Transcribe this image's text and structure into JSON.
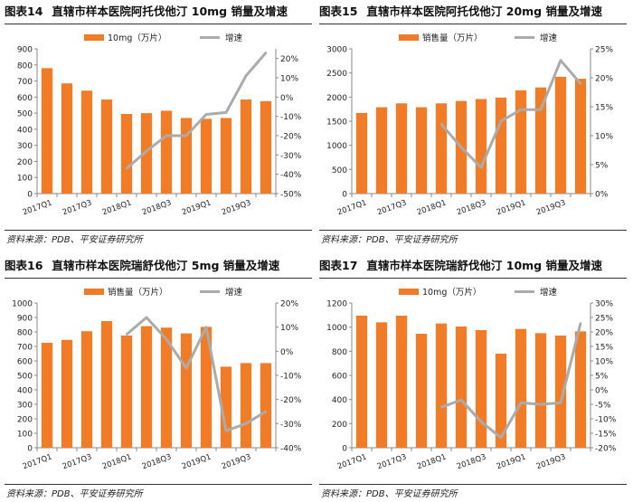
{
  "source_note": "资料来源：PDB、平安证券研究所",
  "chart_data": [
    {
      "type": "bar",
      "figure_label": "图表14",
      "title": "直辖市样本医院阿托伐他汀 10mg 销量及增速",
      "categories": [
        "2017Q1",
        "2017Q2",
        "2017Q3",
        "2017Q4",
        "2018Q1",
        "2018Q2",
        "2018Q3",
        "2018Q4",
        "2019Q1",
        "2019Q2",
        "2019Q3",
        "2019Q4"
      ],
      "x_tick_labels": [
        "2017Q1",
        "",
        "2017Q3",
        "",
        "2018Q1",
        "",
        "2018Q3",
        "",
        "2019Q1",
        "",
        "2019Q3",
        ""
      ],
      "series": [
        {
          "name": "10mg（万片）",
          "kind": "bar",
          "axis": "left",
          "values": [
            780,
            685,
            640,
            585,
            495,
            500,
            515,
            470,
            465,
            470,
            585,
            575
          ]
        },
        {
          "name": "增速",
          "kind": "line",
          "axis": "right",
          "values": [
            null,
            null,
            null,
            null,
            -37,
            -28,
            -20,
            -20,
            -9,
            -8,
            11,
            23
          ]
        }
      ],
      "ylim_left": [
        0,
        900
      ],
      "yticks_left": [
        0,
        100,
        200,
        300,
        400,
        500,
        600,
        700,
        800,
        900
      ],
      "ylim_right": [
        -50,
        25
      ],
      "yticks_right": [
        -50,
        -40,
        -30,
        -20,
        -10,
        0,
        10,
        20
      ],
      "right_unit": "%",
      "legend_position": "top",
      "colors": {
        "bar": "#F07C28",
        "line": "#ABABAB"
      }
    },
    {
      "type": "bar",
      "figure_label": "图表15",
      "title": "直辖市样本医院阿托伐他汀 20mg 销量及增速",
      "categories": [
        "2017Q1",
        "2017Q2",
        "2017Q3",
        "2017Q4",
        "2018Q1",
        "2018Q2",
        "2018Q3",
        "2018Q4",
        "2019Q1",
        "2019Q2",
        "2019Q3",
        "2019Q4"
      ],
      "x_tick_labels": [
        "2017Q1",
        "",
        "2017Q3",
        "",
        "2018Q1",
        "",
        "2018Q3",
        "",
        "2019Q1",
        "",
        "2019Q3",
        ""
      ],
      "series": [
        {
          "name": "销售量（万片）",
          "kind": "bar",
          "axis": "left",
          "values": [
            1670,
            1790,
            1870,
            1790,
            1870,
            1920,
            1960,
            1990,
            2140,
            2200,
            2420,
            2380
          ]
        },
        {
          "name": "增速",
          "kind": "line",
          "axis": "right",
          "values": [
            null,
            null,
            null,
            null,
            12,
            8,
            4.5,
            12.5,
            14.5,
            14.5,
            23,
            19
          ]
        }
      ],
      "ylim_left": [
        0,
        3000
      ],
      "yticks_left": [
        0,
        500,
        1000,
        1500,
        2000,
        2500,
        3000
      ],
      "ylim_right": [
        0,
        25
      ],
      "yticks_right": [
        0,
        5,
        10,
        15,
        20,
        25
      ],
      "right_unit": "%",
      "legend_position": "top",
      "colors": {
        "bar": "#F07C28",
        "line": "#ABABAB"
      }
    },
    {
      "type": "bar",
      "figure_label": "图表16",
      "title": "直辖市样本医院瑞舒伐他汀 5mg 销量及增速",
      "categories": [
        "2017Q1",
        "2017Q2",
        "2017Q3",
        "2017Q4",
        "2018Q1",
        "2018Q2",
        "2018Q3",
        "2018Q4",
        "2019Q1",
        "2019Q2",
        "2019Q3",
        "2019Q4"
      ],
      "x_tick_labels": [
        "2017Q1",
        "",
        "2017Q3",
        "",
        "2018Q1",
        "",
        "2018Q3",
        "",
        "2019Q1",
        "",
        "2019Q3",
        ""
      ],
      "series": [
        {
          "name": "销售量（万片）",
          "kind": "bar",
          "axis": "left",
          "values": [
            725,
            745,
            805,
            875,
            775,
            840,
            830,
            790,
            835,
            560,
            585,
            585
          ]
        },
        {
          "name": "增速",
          "kind": "line",
          "axis": "right",
          "values": [
            null,
            null,
            null,
            null,
            7,
            14,
            5,
            -7,
            10,
            -33,
            -30,
            -25
          ]
        }
      ],
      "ylim_left": [
        0,
        1000
      ],
      "yticks_left": [
        0,
        100,
        200,
        300,
        400,
        500,
        600,
        700,
        800,
        900,
        1000
      ],
      "ylim_right": [
        -40,
        20
      ],
      "yticks_right": [
        -40,
        -30,
        -20,
        -10,
        0,
        10,
        20
      ],
      "right_unit": "%",
      "legend_position": "top",
      "colors": {
        "bar": "#F07C28",
        "line": "#ABABAB"
      }
    },
    {
      "type": "bar",
      "figure_label": "图表17",
      "title": "直辖市样本医院瑞舒伐他汀 10mg 销量及增速",
      "categories": [
        "2017Q1",
        "2017Q2",
        "2017Q3",
        "2017Q4",
        "2018Q1",
        "2018Q2",
        "2018Q3",
        "2018Q4",
        "2019Q1",
        "2019Q2",
        "2019Q3",
        "2019Q4"
      ],
      "x_tick_labels": [
        "2017Q1",
        "",
        "2017Q3",
        "",
        "2018Q1",
        "",
        "2018Q3",
        "",
        "2019Q1",
        "",
        "2019Q3",
        ""
      ],
      "series": [
        {
          "name": "10mg（万片）",
          "kind": "bar",
          "axis": "left",
          "values": [
            1095,
            1040,
            1095,
            945,
            1030,
            1005,
            975,
            780,
            985,
            950,
            930,
            965
          ]
        },
        {
          "name": "增速",
          "kind": "line",
          "axis": "right",
          "values": [
            null,
            null,
            null,
            null,
            -6,
            -3.5,
            -11,
            -16.5,
            -4.5,
            -5,
            -4.5,
            23
          ]
        }
      ],
      "ylim_left": [
        0,
        1200
      ],
      "yticks_left": [
        0,
        200,
        400,
        600,
        800,
        1000,
        1200
      ],
      "ylim_right": [
        -20,
        30
      ],
      "yticks_right": [
        -20,
        -15,
        -10,
        -5,
        0,
        5,
        10,
        15,
        20,
        25,
        30
      ],
      "right_unit": "%",
      "legend_position": "top",
      "colors": {
        "bar": "#F07C28",
        "line": "#ABABAB"
      }
    }
  ]
}
